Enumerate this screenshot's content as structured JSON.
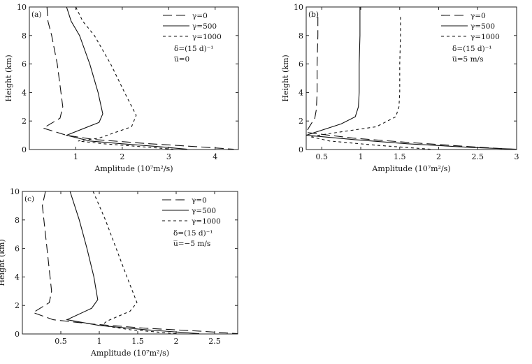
{
  "figure": {
    "panels": [
      {
        "tag": "(a)",
        "params": [
          "δ=(15 d)⁻¹",
          "u̅=0"
        ]
      },
      {
        "tag": "(b)",
        "params": [
          "δ=(15 d)⁻¹",
          "u̅=5 m/s"
        ]
      },
      {
        "tag": "(c)",
        "params": [
          "δ=(15 d)⁻¹",
          "u̅=−5 m/s"
        ]
      }
    ]
  },
  "chart_data": [
    {
      "type": "line",
      "panel": "(a)",
      "xlabel": "Amplitude (10⁷m²/s)",
      "ylabel": "Height (km)",
      "xlim": [
        0,
        4.5
      ],
      "ylim": [
        0,
        10
      ],
      "xticks": [
        "1",
        "2",
        "3",
        "4"
      ],
      "xtick_values": [
        1,
        2,
        3,
        4
      ],
      "yticks": [
        "0",
        "2",
        "4",
        "6",
        "8",
        "10"
      ],
      "ytick_values": [
        0,
        2,
        4,
        6,
        8,
        10
      ],
      "series": [
        {
          "name": "γ=0",
          "style": "long-dash",
          "x": [
            0.38,
            0.4,
            0.48,
            0.6,
            0.68,
            0.72,
            0.66,
            0.3,
            0.8,
            1.4,
            2.6,
            3.6,
            4.4
          ],
          "y": [
            10,
            9.0,
            8.0,
            6.0,
            4.0,
            3.0,
            2.2,
            1.5,
            1.0,
            0.7,
            0.4,
            0.2,
            0.02
          ]
        },
        {
          "name": "γ=500",
          "style": "solid",
          "x": [
            0.8,
            0.9,
            1.08,
            1.3,
            1.48,
            1.58,
            1.5,
            0.8,
            1.3,
            2.0,
            2.8,
            3.4
          ],
          "y": [
            10,
            9.0,
            8.0,
            6.0,
            4.0,
            2.5,
            1.9,
            1.0,
            0.6,
            0.4,
            0.2,
            0.02
          ]
        },
        {
          "name": "γ=1000",
          "style": "short-dash",
          "x": [
            1.0,
            1.15,
            1.4,
            1.75,
            2.05,
            2.3,
            2.2,
            1.5,
            1.05,
            1.6,
            2.4,
            3.1
          ],
          "y": [
            10,
            9.0,
            8.0,
            6.0,
            4.0,
            2.4,
            1.6,
            0.8,
            0.6,
            0.4,
            0.2,
            0.02
          ]
        }
      ]
    },
    {
      "type": "line",
      "panel": "(b)",
      "xlabel": "Amplitude (10⁷m²/s)",
      "ylabel": "Height (km)",
      "xlim": [
        0.3,
        3.0
      ],
      "ylim": [
        0,
        10
      ],
      "xticks": [
        "0.5",
        "1",
        "1.5",
        "2",
        "2.5",
        "3"
      ],
      "xtick_values": [
        0.5,
        1,
        1.5,
        2,
        2.5,
        3
      ],
      "yticks": [
        "0",
        "2",
        "4",
        "6",
        "8",
        "10"
      ],
      "ytick_values": [
        0,
        2,
        4,
        6,
        8,
        10
      ],
      "series": [
        {
          "name": "γ=0",
          "style": "long-dash",
          "x": [
            0.45,
            0.45,
            0.44,
            0.44,
            0.43,
            0.41,
            0.34,
            0.3,
            0.9,
            1.6,
            2.4,
            2.95
          ],
          "y": [
            9.3,
            8.0,
            6.0,
            4.0,
            2.8,
            2.2,
            1.6,
            1.2,
            0.8,
            0.5,
            0.2,
            0.02
          ]
        },
        {
          "name": "γ=500",
          "style": "solid",
          "x": [
            0.99,
            0.99,
            0.98,
            0.98,
            0.97,
            0.93,
            0.75,
            0.3,
            0.9,
            1.6,
            2.4,
            3.0
          ],
          "y": [
            10,
            8.0,
            6.0,
            4.0,
            3.0,
            2.3,
            1.8,
            1.0,
            0.7,
            0.4,
            0.15,
            0.02
          ]
        },
        {
          "name": "γ=1000",
          "style": "short-dash",
          "x": [
            1.51,
            1.51,
            1.5,
            1.5,
            1.49,
            1.45,
            1.2,
            0.7,
            0.35,
            0.6,
            1.2,
            1.9
          ],
          "y": [
            9.3,
            8.0,
            6.0,
            4.0,
            3.0,
            2.3,
            1.6,
            1.2,
            0.9,
            0.6,
            0.3,
            0.02
          ]
        }
      ]
    },
    {
      "type": "line",
      "panel": "(c)",
      "xlabel": "Amplitude (10⁷m²/s)",
      "ylabel": "Height (km)",
      "xlim": [
        0,
        2.8
      ],
      "ylim": [
        0,
        10
      ],
      "xticks": [
        "0.5",
        "1",
        "1.5",
        "2",
        "2.5"
      ],
      "xtick_values": [
        0.5,
        1,
        1.5,
        2,
        2.5
      ],
      "yticks": [
        "0",
        "2",
        "4",
        "6",
        "8",
        "10"
      ],
      "ytick_values": [
        0,
        2,
        4,
        6,
        8,
        10
      ],
      "series": [
        {
          "name": "γ=0",
          "style": "long-dash",
          "x": [
            0.3,
            0.26,
            0.28,
            0.32,
            0.36,
            0.38,
            0.35,
            0.14,
            0.4,
            0.9,
            1.6,
            2.3,
            2.8
          ],
          "y": [
            10,
            9.0,
            8.0,
            6.0,
            4.0,
            3.0,
            2.2,
            1.5,
            1.0,
            0.7,
            0.4,
            0.2,
            0.02
          ]
        },
        {
          "name": "γ=500",
          "style": "solid",
          "x": [
            0.62,
            0.68,
            0.74,
            0.84,
            0.93,
            0.98,
            0.9,
            0.58,
            1.0,
            1.6,
            2.3
          ],
          "y": [
            10,
            9.0,
            8.0,
            6.0,
            4.0,
            2.4,
            1.8,
            1.0,
            0.6,
            0.3,
            0.02
          ]
        },
        {
          "name": "γ=1000",
          "style": "short-dash",
          "x": [
            0.92,
            1.0,
            1.08,
            1.22,
            1.36,
            1.49,
            1.4,
            1.1,
            1.03,
            1.4,
            2.0
          ],
          "y": [
            10,
            9.0,
            8.0,
            6.0,
            4.0,
            2.2,
            1.6,
            0.9,
            0.6,
            0.3,
            0.02
          ]
        }
      ]
    }
  ]
}
